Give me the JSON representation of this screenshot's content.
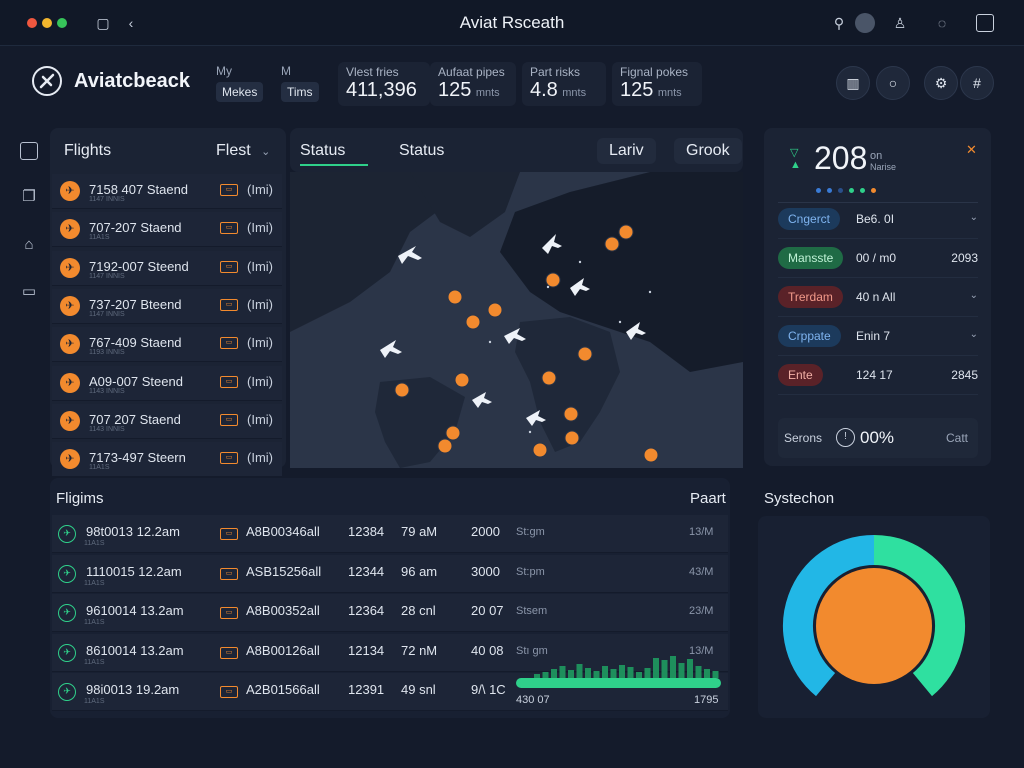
{
  "window": {
    "title": "Aviat Rsceath"
  },
  "header": {
    "brand": "Aviatcbeack",
    "mini": [
      {
        "label": "My",
        "value": "Mekes"
      },
      {
        "label": "M",
        "value": "Tims"
      }
    ],
    "stats": [
      {
        "label": "Vlest fries",
        "value": "411,396",
        "unit": ""
      },
      {
        "label": "Aufaat pipes",
        "value": "125",
        "unit": "mnts"
      },
      {
        "label": "Part risks",
        "value": "4.8",
        "unit": "mnts"
      },
      {
        "label": "Fignal pokes",
        "value": "125",
        "unit": "mnts"
      }
    ]
  },
  "flights_panel": {
    "title": "Flights",
    "filter": "Flest",
    "rows": [
      {
        "label": "7158 407 Staend",
        "sub": "1147 INNIS",
        "tail": "(Imi)"
      },
      {
        "label": "707-207 Staend",
        "sub": "11A1S",
        "tail": "(Imi)"
      },
      {
        "label": "7192-007 Steend",
        "sub": "1147 INNIS",
        "tail": "(Imi)"
      },
      {
        "label": "737-207 Bteend",
        "sub": "1147 INNIS",
        "tail": "(Imi)"
      },
      {
        "label": "767-409 Staend",
        "sub": "1193 INNIS",
        "tail": "(Imi)"
      },
      {
        "label": "A09-007 Steend",
        "sub": "1143 INNIS",
        "tail": "(Imi)"
      },
      {
        "label": "707 207 Staend",
        "sub": "1143 INNIS",
        "tail": "(Imi)"
      },
      {
        "label": "7173-497 Steern",
        "sub": "11A1S",
        "tail": "(Imi)"
      }
    ]
  },
  "tabs": [
    {
      "label": "Status"
    },
    {
      "label": "Status"
    },
    {
      "label": "Lariv"
    },
    {
      "label": "Grook"
    }
  ],
  "status_panel": {
    "big_value": "208",
    "unit": "on",
    "sub": "Narise",
    "rows": [
      {
        "pill": "Cngerct",
        "mid": "Be6. 0I",
        "right": "",
        "color": "#1c3a5c",
        "text_color": "#7fb4f0"
      },
      {
        "pill": "Mansste",
        "mid": "00 / m0",
        "right": "2093",
        "color": "#1f6b45",
        "text_color": "#bff2d6"
      },
      {
        "pill": "Trerdam",
        "mid": "40 n All",
        "right": "",
        "color": "#5a2228",
        "text_color": "#f29a8a"
      },
      {
        "pill": "Crppate",
        "mid": "Enin 7",
        "right": "",
        "color": "#1c3a5c",
        "text_color": "#7fb4f0"
      },
      {
        "pill": "Ente",
        "mid": "124 17",
        "right": "2845",
        "color": "#5a2228",
        "text_color": "#f2b0a6"
      }
    ],
    "footer_label": "Serons",
    "footer_value": "00%",
    "footer_right": "Catt"
  },
  "table": {
    "title": "Fligims",
    "right_title": "Paart",
    "rows": [
      {
        "c1": "98t0013 12.2am",
        "sub": "11A1S",
        "c2": "A8B00346all",
        "c3": "12384",
        "c4": "79 aM",
        "c5": "2000",
        "c6": "St:gm",
        "c7": "13/M"
      },
      {
        "c1": "1110015 12.2am",
        "sub": "11A1S",
        "c2": "ASB15256all",
        "c3": "12344",
        "c4": "96 am",
        "c5": "3000",
        "c6": "St:pm",
        "c7": "43/M"
      },
      {
        "c1": "9610014 13.2am",
        "sub": "11A1S",
        "c2": "A8B00352all",
        "c3": "12364",
        "c4": "28 cnl",
        "c5": "20 07",
        "c6": "Stsem",
        "c7": "23/M"
      },
      {
        "c1": "8610014 13.2am",
        "sub": "11A1S",
        "c2": "A8B00126all",
        "c3": "12134",
        "c4": "72 nM",
        "c5": "40 08",
        "c6": "Stı gm",
        "c7": "13/M"
      },
      {
        "c1": "98i0013 19.2am",
        "sub": "11A1S",
        "c2": "A2B01566all",
        "c3": "12391",
        "c4": "49 snl",
        "c5": "9/\\ 1C",
        "c6": "",
        "c7": ""
      }
    ],
    "bar_left": "430 07",
    "bar_right": "1795"
  },
  "system": {
    "title": "Systechon",
    "gauge_fraction": 0.65
  },
  "colors": {
    "accent": "#f28a2e",
    "green": "#2fd08a",
    "cyan": "#22b7e6"
  }
}
